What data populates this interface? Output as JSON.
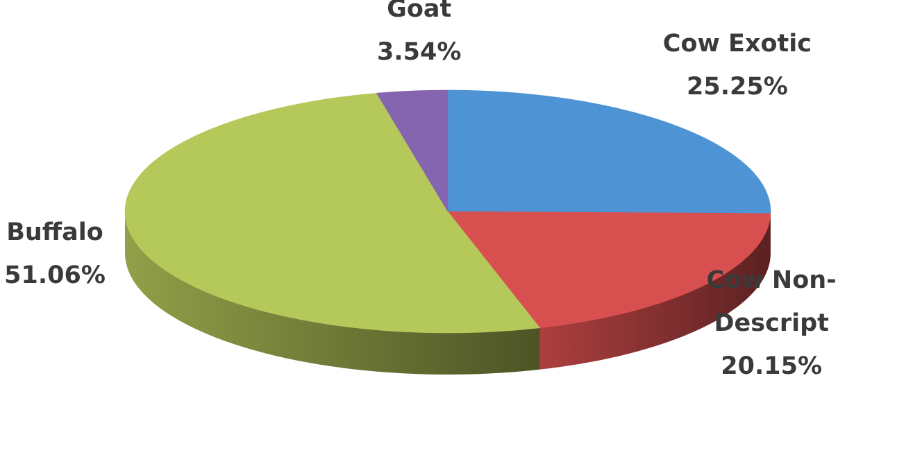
{
  "chart_data": {
    "type": "pie",
    "style": "3d",
    "start_angle_deg": 0,
    "direction": "clockwise",
    "slices": [
      {
        "label": "Cow Exotic",
        "lines": [
          "Cow Exotic",
          "25.25%"
        ],
        "value": 25.25,
        "color": "#4e93d3"
      },
      {
        "label": "Cow Non-Descript",
        "lines": [
          "Cow Non-",
          "Descript",
          "20.15%"
        ],
        "value": 20.15,
        "color": "#d84f4f"
      },
      {
        "label": "Buffalo",
        "lines": [
          "Buffalo",
          "51.06%"
        ],
        "value": 51.06,
        "color": "#b5c85a"
      },
      {
        "label": "Goat",
        "lines": [
          "Goat",
          "3.54%"
        ],
        "value": 3.54,
        "color": "#8565b0"
      }
    ]
  }
}
